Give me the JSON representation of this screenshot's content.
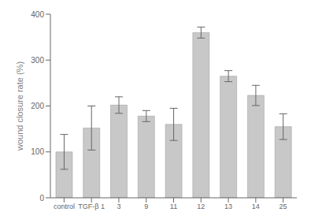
{
  "chart_data": {
    "type": "bar",
    "categories": [
      "control",
      "TGF-β 1",
      "3",
      "9",
      "11",
      "12",
      "13",
      "14",
      "25"
    ],
    "values": [
      100,
      152,
      202,
      178,
      160,
      360,
      265,
      223,
      155
    ],
    "errors": [
      38,
      48,
      18,
      12,
      35,
      12,
      12,
      22,
      28
    ],
    "color": "#c8c8c8",
    "ylabel": "wound closure rate (%)",
    "ylim": [
      0,
      400
    ],
    "yticks": [
      0,
      100,
      200,
      300,
      400
    ],
    "grid": false
  }
}
